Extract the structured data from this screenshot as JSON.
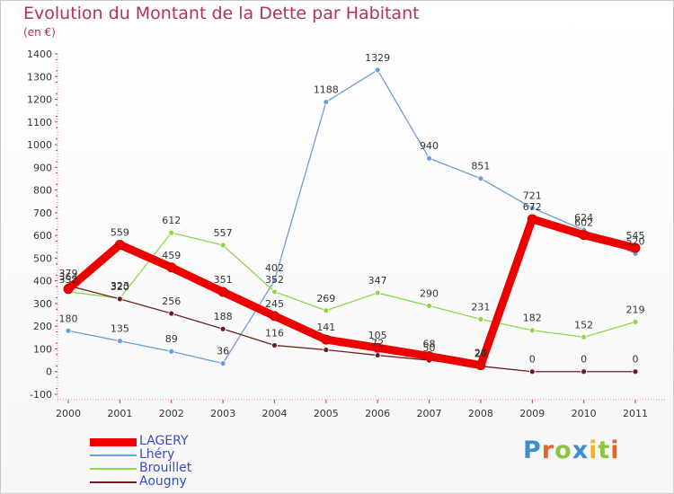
{
  "title": "Evolution du Montant de la Dette par Habitant",
  "subtitle": "(en €)",
  "logo": {
    "text": "Proxiti",
    "letters": [
      {
        "ch": "P",
        "color": "#3b8ed0"
      },
      {
        "ch": "r",
        "color": "#e8651f"
      },
      {
        "ch": "o",
        "color": "#8cc63f"
      },
      {
        "ch": "x",
        "color": "#3b8ed0"
      },
      {
        "ch": "i",
        "color": "#f2b51d"
      },
      {
        "ch": "t",
        "color": "#8cc63f"
      },
      {
        "ch": "i",
        "color": "#e8651f"
      }
    ]
  },
  "chart_data": {
    "type": "line",
    "title": "Evolution du Montant de la Dette par Habitant",
    "ylabel": "(en €)",
    "xlabel": "",
    "x": [
      "2000",
      "2001",
      "2002",
      "2003",
      "2004",
      "2005",
      "2006",
      "2007",
      "2008",
      "2009",
      "2010",
      "2011"
    ],
    "ylim": [
      -100,
      1400
    ],
    "yticks": [
      -100,
      0,
      100,
      200,
      300,
      400,
      500,
      600,
      700,
      800,
      900,
      1000,
      1100,
      1200,
      1300,
      1400
    ],
    "grid": false,
    "legend": "bottom-left",
    "series": [
      {
        "name": "LAGERY",
        "color": "#ee0000",
        "values": [
          364,
          559,
          459,
          351,
          245,
          141,
          105,
          68,
          28,
          672,
          602,
          545
        ],
        "labels": [
          "364",
          "559",
          "459",
          "351",
          "245",
          "141",
          "105",
          "68",
          "28",
          "672",
          "602",
          "545"
        ]
      },
      {
        "name": "Lhéry",
        "color": "#6a9fd8",
        "values": [
          180,
          135,
          89,
          36,
          402,
          1188,
          1329,
          940,
          851,
          721,
          624,
          520
        ],
        "labels": [
          "180",
          "135",
          "89",
          "36",
          "402",
          "1188",
          "1329",
          "940",
          "851",
          "721",
          "624",
          "520"
        ]
      },
      {
        "name": "Brouillet",
        "color": "#8cd84a",
        "values": [
          352,
          323,
          612,
          557,
          352,
          269,
          347,
          290,
          231,
          182,
          152,
          219
        ],
        "labels": [
          "352",
          "323",
          "612",
          "557",
          "352",
          "269",
          "347",
          "290",
          "231",
          "182",
          "152",
          "219"
        ]
      },
      {
        "name": "Aougny",
        "color": "#6b1f1f",
        "values": [
          379,
          320,
          256,
          188,
          116,
          96,
          72,
          50,
          24,
          0,
          0,
          0
        ],
        "labels": [
          "379",
          "320",
          "256",
          "188",
          "116",
          "",
          "72",
          "50",
          "24",
          "0",
          "0",
          "0"
        ]
      }
    ]
  }
}
